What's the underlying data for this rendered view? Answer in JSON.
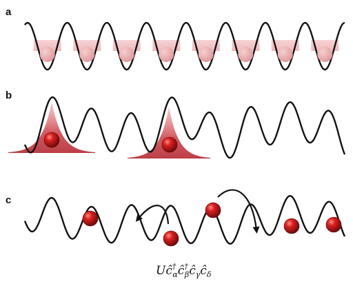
{
  "panels": [
    {
      "label": "a"
    },
    {
      "label": "b"
    },
    {
      "label": "c"
    }
  ],
  "formula": {
    "U": "U",
    "c": "ĉ",
    "dag": "†",
    "subs": [
      "α",
      "β",
      "γ",
      "δ"
    ]
  },
  "colors": {
    "potential": "#111111",
    "particle": "#c0121b",
    "band": "#f2c4c7",
    "wavepacket": "#c8323c",
    "arrow": "#111111"
  },
  "icons": {
    "particle": "red-sphere-icon",
    "hop_arrow": "curved-arrow-icon"
  }
}
